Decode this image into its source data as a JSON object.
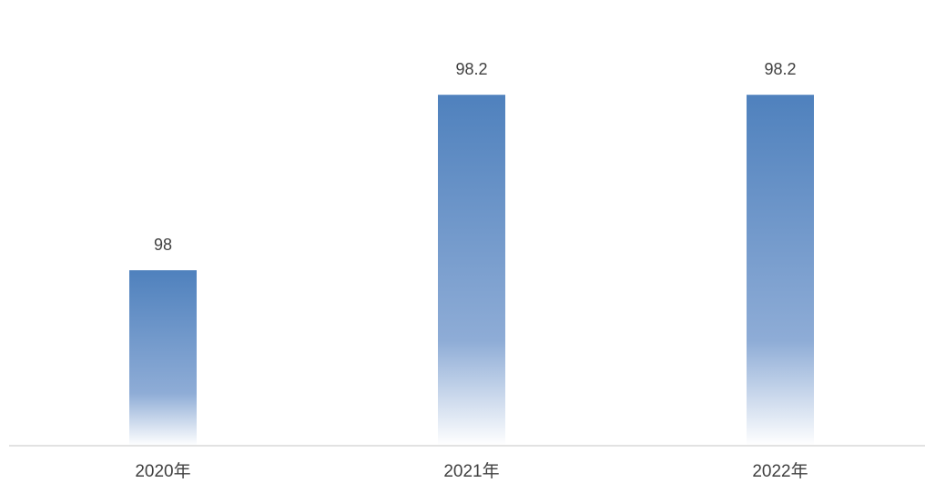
{
  "chart_data": {
    "type": "bar",
    "categories": [
      "2020年",
      "2021年",
      "2022年"
    ],
    "values": [
      98,
      98.2,
      98.2
    ],
    "data_labels": [
      "98",
      "98.2",
      "98.2"
    ],
    "title": "",
    "xlabel": "",
    "ylabel": "",
    "ylim": [
      97.8,
      98.25
    ],
    "grid": false,
    "legend": "none",
    "colors": {
      "bar_top": "#4f81bd",
      "bar_bottom": "#ffffff",
      "axis_line": "#d9d9d9",
      "label_text": "#404040"
    }
  }
}
